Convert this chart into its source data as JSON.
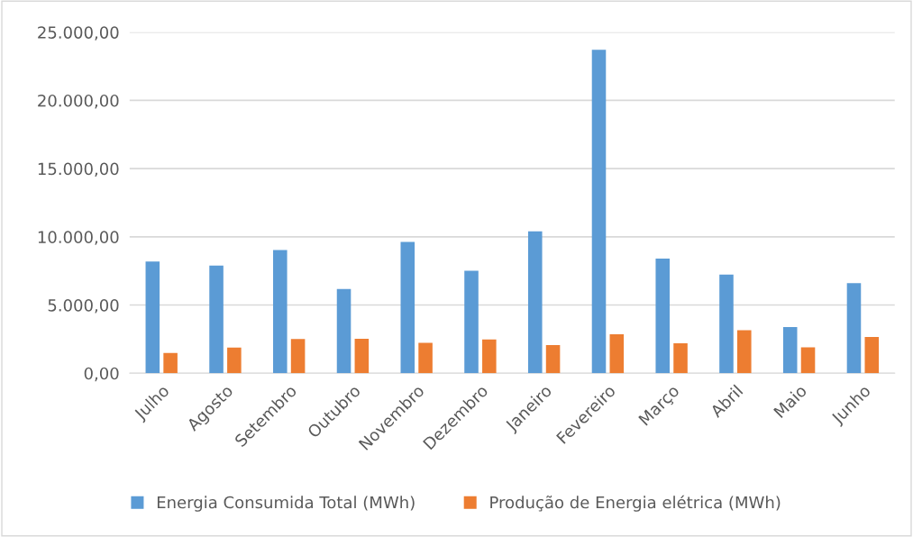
{
  "chart_data": {
    "type": "bar",
    "categories": [
      "Julho",
      "Agosto",
      "Setembro",
      "Outubro",
      "Novembro",
      "Dezembro",
      "Janeiro",
      "Fevereiro",
      "Março",
      "Abril",
      "Maio",
      "Junho"
    ],
    "series": [
      {
        "name": "Energia Consumida Total (MWh)",
        "color": "#5b9bd5",
        "values": [
          8190,
          7900,
          9030,
          6170,
          9620,
          7520,
          10400,
          23720,
          8410,
          7230,
          3380,
          6610
        ]
      },
      {
        "name": "Produção de Energia elétrica (MWh)",
        "color": "#ed7d31",
        "values": [
          1480,
          1880,
          2500,
          2520,
          2230,
          2480,
          2060,
          2850,
          2190,
          3160,
          1900,
          2650
        ]
      }
    ],
    "ylim": [
      0,
      25000
    ],
    "yticks": [
      {
        "value": 0,
        "label": "0,00"
      },
      {
        "value": 5000,
        "label": "5.000,00"
      },
      {
        "value": 10000,
        "label": "10.000,00"
      },
      {
        "value": 15000,
        "label": "15.000,00"
      },
      {
        "value": 20000,
        "label": "20.000,00"
      },
      {
        "value": 25000,
        "label": "25.000,00"
      }
    ],
    "grid": "y",
    "legend": "bottom"
  }
}
